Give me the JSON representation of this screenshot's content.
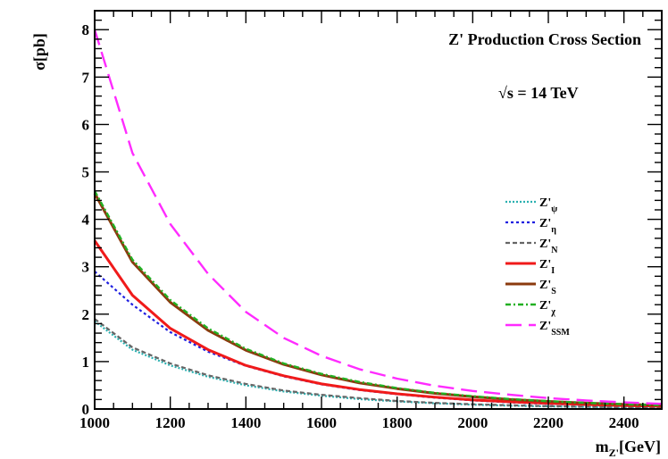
{
  "chart_data": {
    "type": "line",
    "title": "Z' Production Cross Section",
    "annotation": "√s = 14 TeV",
    "xlabel": "m_{Z'}[GeV]",
    "ylabel": "σ[pb]",
    "xlim": [
      1000,
      2500
    ],
    "ylim": [
      0,
      8.4
    ],
    "xticks": [
      1000,
      1200,
      1400,
      1600,
      1800,
      2000,
      2200,
      2400
    ],
    "yticks": [
      0,
      1,
      2,
      3,
      4,
      5,
      6,
      7,
      8
    ],
    "x": [
      1000,
      1100,
      1200,
      1300,
      1400,
      1500,
      1600,
      1700,
      1800,
      1900,
      2000,
      2100,
      2200,
      2300,
      2400,
      2500
    ],
    "series": [
      {
        "name": "Z'ψ",
        "label_main": "Z'",
        "label_sub": "ψ",
        "color": "#2ab0b0",
        "dash": "2,2",
        "width": 2.2,
        "values": [
          1.85,
          1.25,
          0.92,
          0.68,
          0.5,
          0.37,
          0.28,
          0.21,
          0.16,
          0.12,
          0.09,
          0.07,
          0.055,
          0.043,
          0.034,
          0.027
        ]
      },
      {
        "name": "Z'η",
        "label_main": "Z'",
        "label_sub": "η",
        "color": "#1f1fe0",
        "dash": "3,3",
        "width": 2.2,
        "values": [
          2.9,
          2.2,
          1.62,
          1.21,
          0.91,
          0.69,
          0.52,
          0.4,
          0.31,
          0.24,
          0.18,
          0.14,
          0.11,
          0.086,
          0.068,
          0.054
        ]
      },
      {
        "name": "Z'N",
        "label_main": "Z'",
        "label_sub": "N",
        "color": "#666666",
        "dash": "5,3",
        "width": 2.2,
        "values": [
          1.9,
          1.3,
          0.96,
          0.71,
          0.53,
          0.39,
          0.3,
          0.23,
          0.17,
          0.13,
          0.1,
          0.08,
          0.06,
          0.047,
          0.037,
          0.029
        ]
      },
      {
        "name": "Z'I",
        "label_main": "Z'",
        "label_sub": "I",
        "color": "#f01a1a",
        "dash": "",
        "width": 3,
        "values": [
          3.55,
          2.4,
          1.7,
          1.25,
          0.92,
          0.7,
          0.53,
          0.41,
          0.32,
          0.25,
          0.19,
          0.15,
          0.12,
          0.094,
          0.074,
          0.058
        ]
      },
      {
        "name": "Z'S",
        "label_main": "Z'",
        "label_sub": "S",
        "color": "#8b3a0e",
        "dash": "",
        "width": 3,
        "values": [
          4.55,
          3.1,
          2.25,
          1.66,
          1.24,
          0.94,
          0.72,
          0.55,
          0.43,
          0.33,
          0.26,
          0.2,
          0.16,
          0.125,
          0.098,
          0.077
        ]
      },
      {
        "name": "Z'χ",
        "label_main": "Z'",
        "label_sub": "χ",
        "color": "#22b022",
        "dash": "6,3,2,3",
        "width": 2.4,
        "values": [
          4.6,
          3.15,
          2.3,
          1.7,
          1.27,
          0.96,
          0.74,
          0.57,
          0.44,
          0.34,
          0.27,
          0.21,
          0.165,
          0.13,
          0.1,
          0.08
        ]
      },
      {
        "name": "Z'SSM",
        "label_main": "Z'",
        "label_sub": "SSM",
        "color": "#ff2bff",
        "dash": "18,8",
        "width": 2.4,
        "values": [
          8.0,
          5.4,
          3.9,
          2.85,
          2.05,
          1.5,
          1.12,
          0.84,
          0.64,
          0.49,
          0.38,
          0.3,
          0.23,
          0.18,
          0.14,
          0.11
        ]
      }
    ]
  }
}
